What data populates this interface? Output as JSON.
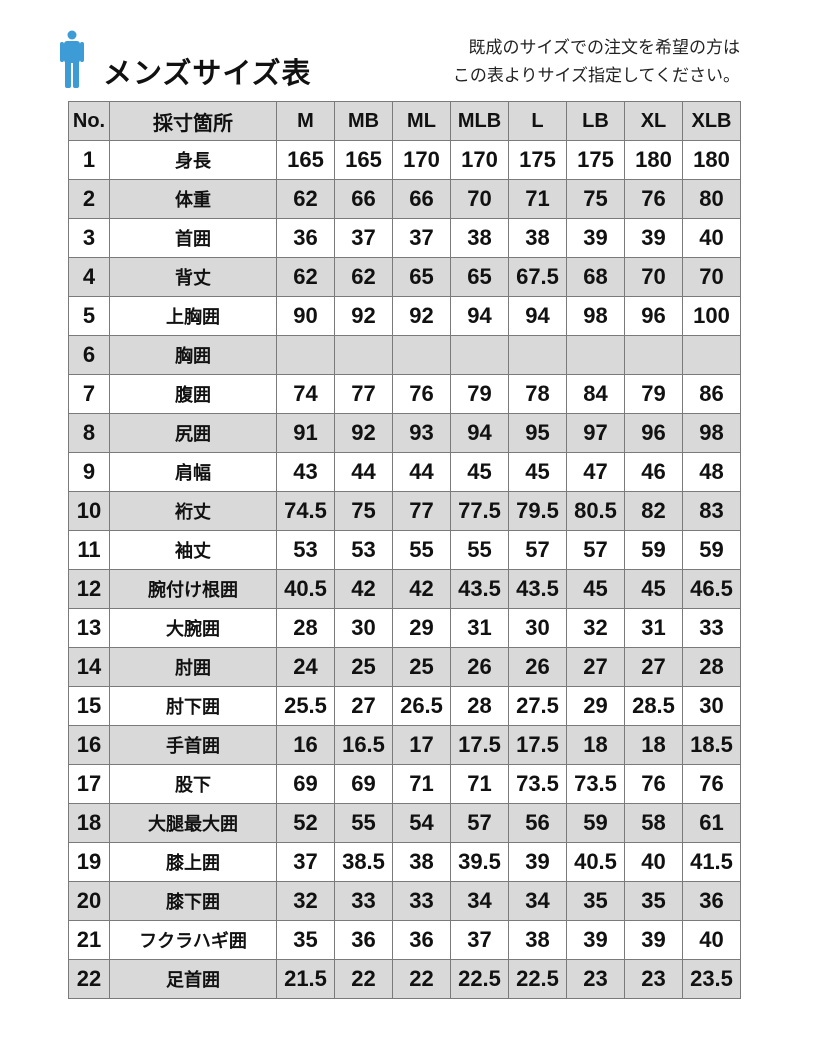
{
  "header": {
    "title": "メンズサイズ表",
    "icon": "person-icon",
    "icon_color": "#3d9bd6",
    "note_line1": "既成のサイズでの注文を希望の方は",
    "note_line2": "この表よりサイズ指定してください。"
  },
  "table": {
    "columns": [
      "No.",
      "採寸箇所",
      "M",
      "MB",
      "ML",
      "MLB",
      "L",
      "LB",
      "XL",
      "XLB"
    ],
    "rows": [
      [
        "1",
        "身長",
        "165",
        "165",
        "170",
        "170",
        "175",
        "175",
        "180",
        "180"
      ],
      [
        "2",
        "体重",
        "62",
        "66",
        "66",
        "70",
        "71",
        "75",
        "76",
        "80"
      ],
      [
        "3",
        "首囲",
        "36",
        "37",
        "37",
        "38",
        "38",
        "39",
        "39",
        "40"
      ],
      [
        "4",
        "背丈",
        "62",
        "62",
        "65",
        "65",
        "67.5",
        "68",
        "70",
        "70"
      ],
      [
        "5",
        "上胸囲",
        "90",
        "92",
        "92",
        "94",
        "94",
        "98",
        "96",
        "100"
      ],
      [
        "6",
        "胸囲",
        "",
        "",
        "",
        "",
        "",
        "",
        "",
        ""
      ],
      [
        "7",
        "腹囲",
        "74",
        "77",
        "76",
        "79",
        "78",
        "84",
        "79",
        "86"
      ],
      [
        "8",
        "尻囲",
        "91",
        "92",
        "93",
        "94",
        "95",
        "97",
        "96",
        "98"
      ],
      [
        "9",
        "肩幅",
        "43",
        "44",
        "44",
        "45",
        "45",
        "47",
        "46",
        "48"
      ],
      [
        "10",
        "裄丈",
        "74.5",
        "75",
        "77",
        "77.5",
        "79.5",
        "80.5",
        "82",
        "83"
      ],
      [
        "11",
        "袖丈",
        "53",
        "53",
        "55",
        "55",
        "57",
        "57",
        "59",
        "59"
      ],
      [
        "12",
        "腕付け根囲",
        "40.5",
        "42",
        "42",
        "43.5",
        "43.5",
        "45",
        "45",
        "46.5"
      ],
      [
        "13",
        "大腕囲",
        "28",
        "30",
        "29",
        "31",
        "30",
        "32",
        "31",
        "33"
      ],
      [
        "14",
        "肘囲",
        "24",
        "25",
        "25",
        "26",
        "26",
        "27",
        "27",
        "28"
      ],
      [
        "15",
        "肘下囲",
        "25.5",
        "27",
        "26.5",
        "28",
        "27.5",
        "29",
        "28.5",
        "30"
      ],
      [
        "16",
        "手首囲",
        "16",
        "16.5",
        "17",
        "17.5",
        "17.5",
        "18",
        "18",
        "18.5"
      ],
      [
        "17",
        "股下",
        "69",
        "69",
        "71",
        "71",
        "73.5",
        "73.5",
        "76",
        "76"
      ],
      [
        "18",
        "大腿最大囲",
        "52",
        "55",
        "54",
        "57",
        "56",
        "59",
        "58",
        "61"
      ],
      [
        "19",
        "膝上囲",
        "37",
        "38.5",
        "38",
        "39.5",
        "39",
        "40.5",
        "40",
        "41.5"
      ],
      [
        "20",
        "膝下囲",
        "32",
        "33",
        "33",
        "34",
        "34",
        "35",
        "35",
        "36"
      ],
      [
        "21",
        "フクラハギ囲",
        "35",
        "36",
        "36",
        "37",
        "38",
        "39",
        "39",
        "40"
      ],
      [
        "22",
        "足首囲",
        "21.5",
        "22",
        "22",
        "22.5",
        "22.5",
        "23",
        "23",
        "23.5"
      ]
    ]
  }
}
